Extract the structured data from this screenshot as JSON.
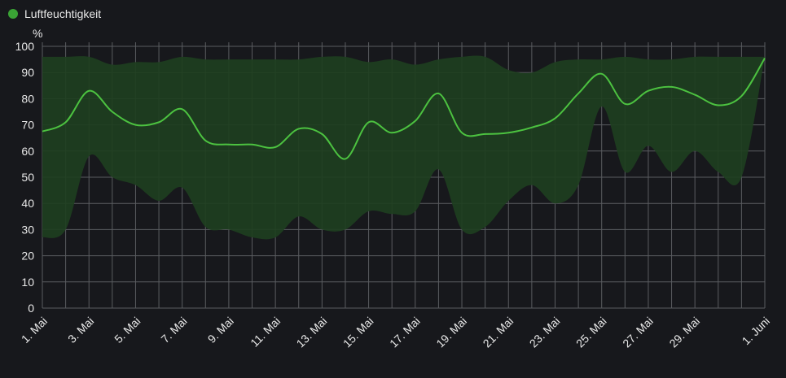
{
  "legend": {
    "label": "Luftfeuchtigkeit",
    "color": "#3aa335"
  },
  "colors": {
    "line": "#4cc240",
    "band": "#1e3f1f",
    "grid": "#5a5c60",
    "background": "#17181c"
  },
  "chart_data": {
    "type": "line",
    "ylabel": "%",
    "ylim": [
      0,
      100
    ],
    "yticks": [
      0,
      10,
      20,
      30,
      40,
      50,
      60,
      70,
      80,
      90,
      100
    ],
    "grid": true,
    "legend_position": "top-left",
    "xlim": [
      1,
      32
    ],
    "xticks": [
      {
        "day": 1,
        "label": "1. Mai"
      },
      {
        "day": 3,
        "label": "3. Mai"
      },
      {
        "day": 5,
        "label": "5. Mai"
      },
      {
        "day": 7,
        "label": "7. Mai"
      },
      {
        "day": 9,
        "label": "9. Mai"
      },
      {
        "day": 11,
        "label": "11. Mai"
      },
      {
        "day": 13,
        "label": "13. Mai"
      },
      {
        "day": 15,
        "label": "15. Mai"
      },
      {
        "day": 17,
        "label": "17. Mai"
      },
      {
        "day": 19,
        "label": "19. Mai"
      },
      {
        "day": 21,
        "label": "21. Mai"
      },
      {
        "day": 23,
        "label": "23. Mai"
      },
      {
        "day": 25,
        "label": "25. Mai"
      },
      {
        "day": 27,
        "label": "27. Mai"
      },
      {
        "day": 29,
        "label": "29. Mai"
      },
      {
        "day": 32,
        "label": "1. Juni"
      }
    ],
    "series": [
      {
        "name": "Luftfeuchtigkeit",
        "x": [
          1,
          2,
          3,
          4,
          5,
          6,
          7,
          8,
          9,
          10,
          11,
          12,
          13,
          14,
          15,
          16,
          17,
          18,
          19,
          20,
          21,
          22,
          23,
          24,
          25,
          26,
          27,
          28,
          29,
          30,
          31,
          32
        ],
        "mean": [
          67.5,
          71,
          83,
          75,
          70,
          71,
          76,
          64,
          62.5,
          62.5,
          61.5,
          68.5,
          66.5,
          57,
          71,
          67,
          71.5,
          82,
          67,
          66.5,
          67,
          69,
          72.5,
          82,
          89.5,
          78,
          83,
          84.5,
          81.5,
          77.5,
          81,
          95.5
        ],
        "max": [
          96,
          96,
          96,
          93,
          94,
          94,
          96,
          95,
          95,
          95,
          95,
          95,
          96,
          96,
          94,
          95,
          93,
          95,
          96,
          96,
          91,
          90,
          94,
          95,
          95,
          96,
          95,
          95,
          96,
          96,
          96,
          96
        ],
        "min": [
          27,
          30,
          58,
          50,
          47,
          41,
          46,
          31,
          30,
          27,
          27,
          35,
          30,
          30,
          37,
          36,
          37,
          53,
          30,
          31,
          41,
          47,
          40,
          47,
          77,
          52,
          62,
          52,
          60,
          52,
          50,
          96
        ]
      }
    ]
  }
}
